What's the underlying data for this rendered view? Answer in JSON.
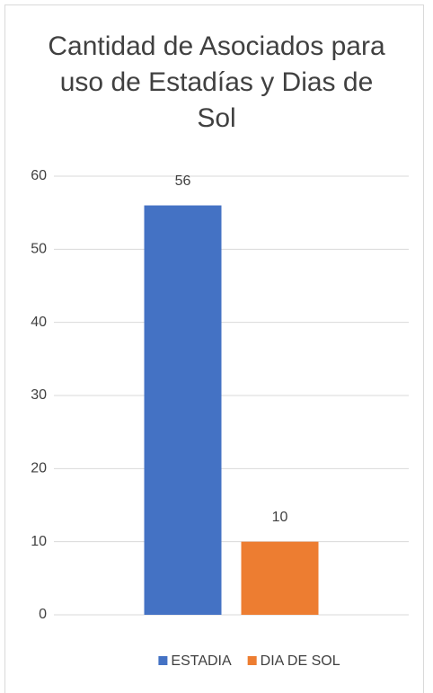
{
  "chart_data": {
    "type": "bar",
    "title": "Cantidad de Asociados para uso de Estadías y Dias de Sol",
    "categories": [
      null
    ],
    "series": [
      {
        "name": "ESTADIA",
        "color": "#4472c4",
        "values": [
          56
        ]
      },
      {
        "name": "DIA DE SOL",
        "color": "#ed7d31",
        "values": [
          10
        ]
      }
    ],
    "ylim": [
      0,
      60
    ],
    "yticks": [
      0,
      10,
      20,
      30,
      40,
      50,
      60
    ],
    "grid": true,
    "legend": "bottom"
  }
}
